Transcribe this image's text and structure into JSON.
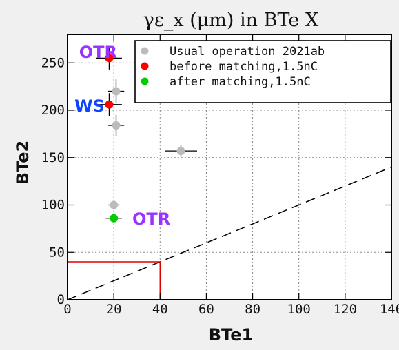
{
  "chart_data": {
    "type": "scatter",
    "title": "γε_x (μm) in BTe X",
    "xlabel": "BTe1",
    "ylabel": "BTe2",
    "xlim": [
      0,
      140
    ],
    "ylim": [
      0,
      280
    ],
    "xticks": [
      0,
      20,
      40,
      60,
      80,
      100,
      120,
      140
    ],
    "yticks": [
      0,
      50,
      100,
      150,
      200,
      250
    ],
    "xtick_labels": [
      "0",
      "20",
      "40",
      "60",
      "80",
      "100",
      "120",
      "140"
    ],
    "ytick_labels": [
      "0",
      "50",
      "100",
      "150",
      "200",
      "250"
    ],
    "grid": true,
    "legend_position": "top-right",
    "series": [
      {
        "name": "Usual operation 2021ab",
        "color": "#bbbbbb",
        "points": [
          {
            "x": 21,
            "y": 220,
            "xerr": 3.5,
            "yerr": 13
          },
          {
            "x": 21,
            "y": 184,
            "xerr": 3.5,
            "yerr": 11
          },
          {
            "x": 49,
            "y": 157,
            "xerr": 7,
            "yerr": 6
          },
          {
            "x": 20,
            "y": 100,
            "xerr": 2.5,
            "yerr": 4
          }
        ]
      },
      {
        "name": "before matching,1.5nC",
        "color": "#ff0000",
        "points": [
          {
            "x": 18,
            "y": 255,
            "xerr": 5.5,
            "yerr": 12
          },
          {
            "x": 18,
            "y": 206,
            "xerr": 5.5,
            "yerr": 12
          }
        ]
      },
      {
        "name": "after matching,1.5nC",
        "color": "#00cc00",
        "points": [
          {
            "x": 20,
            "y": 86,
            "xerr": 3.5,
            "yerr": 3
          }
        ]
      }
    ],
    "lines": [
      {
        "kind": "dashed",
        "color": "#000000",
        "from": [
          0,
          0
        ],
        "to": [
          140,
          140
        ]
      },
      {
        "kind": "box",
        "color": "#dd0000",
        "x": [
          0,
          40
        ],
        "y": [
          0,
          40
        ]
      }
    ],
    "annotations": [
      {
        "text": "OTR",
        "color": "#9933ff",
        "x": 5,
        "y": 262
      },
      {
        "text": "WS",
        "color": "#1144ff",
        "x": 3,
        "y": 205
      },
      {
        "text": "OTR",
        "color": "#9933ff",
        "x": 28,
        "y": 86
      }
    ]
  }
}
